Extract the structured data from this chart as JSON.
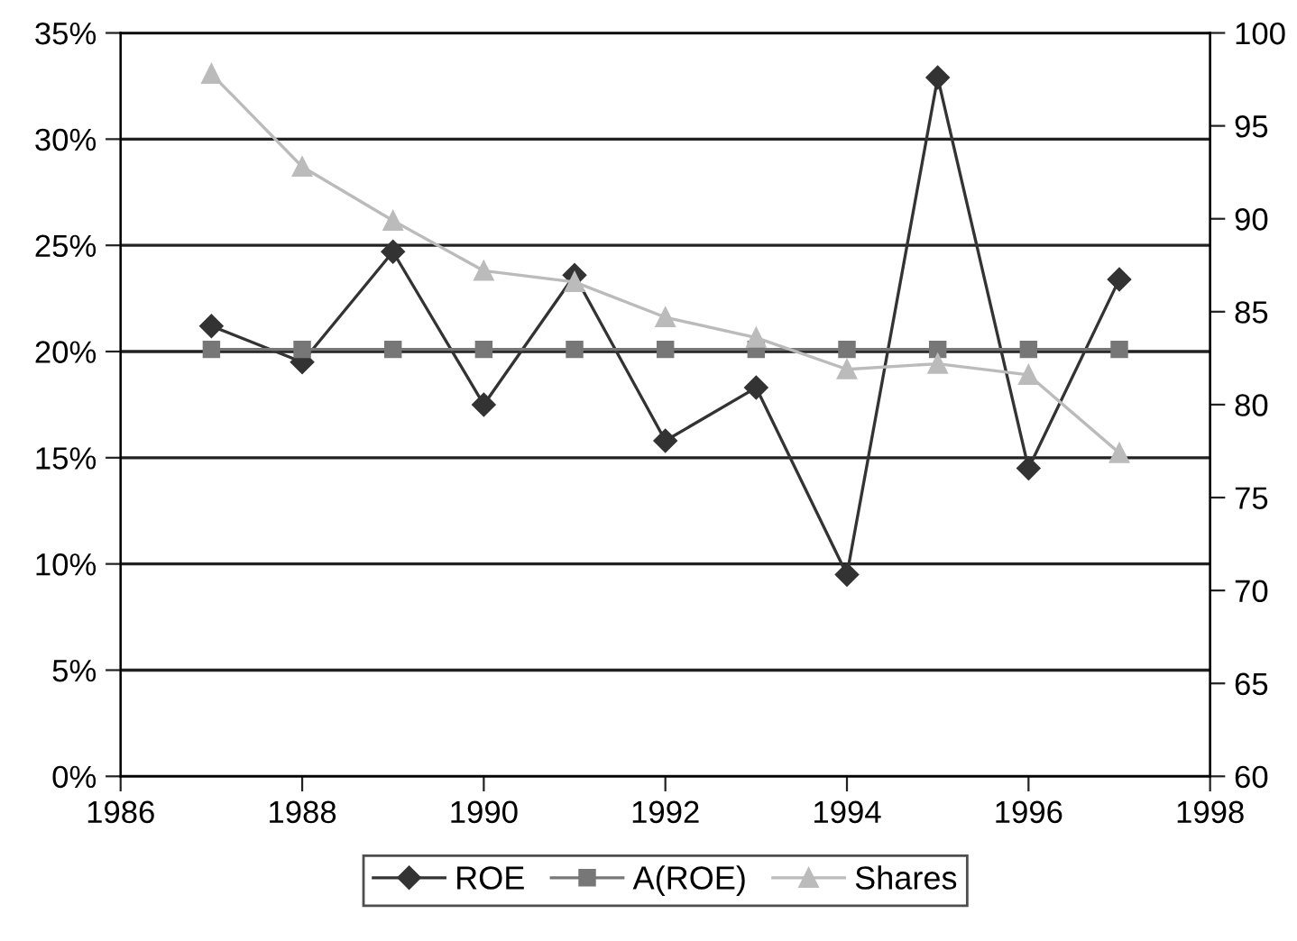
{
  "chart_data": {
    "type": "line",
    "x": [
      1987,
      1988,
      1989,
      1990,
      1991,
      1992,
      1993,
      1994,
      1995,
      1996,
      1997
    ],
    "series": [
      {
        "name": "ROE",
        "color": "#333333",
        "marker": "diamond",
        "values": [
          21.2,
          19.5,
          24.7,
          17.5,
          23.6,
          15.8,
          18.3,
          9.5,
          32.9,
          14.5,
          23.4
        ]
      },
      {
        "name": "A(ROE)",
        "color": "#777777",
        "marker": "square",
        "values": [
          20.1,
          20.1,
          20.1,
          20.1,
          20.1,
          20.1,
          20.1,
          20.1,
          20.1,
          20.1,
          20.1
        ]
      },
      {
        "name": "Shares",
        "color": "#bbbbbb",
        "marker": "triangle",
        "axis": "y2",
        "values": [
          97.8,
          92.8,
          89.9,
          87.2,
          86.6,
          84.7,
          83.6,
          81.9,
          82.2,
          81.6,
          77.4
        ]
      }
    ],
    "xlim": [
      1986,
      1998
    ],
    "xticks": [
      1986,
      1988,
      1990,
      1992,
      1994,
      1996,
      1998
    ],
    "ylim": [
      0,
      35
    ],
    "yticks": [
      {
        "value": 0,
        "label": "0%"
      },
      {
        "value": 5,
        "label": "5%"
      },
      {
        "value": 10,
        "label": "10%"
      },
      {
        "value": 15,
        "label": "15%"
      },
      {
        "value": 20,
        "label": "20%"
      },
      {
        "value": 25,
        "label": "25%"
      },
      {
        "value": 30,
        "label": "30%"
      },
      {
        "value": 35,
        "label": "35%"
      }
    ],
    "y2lim": [
      60,
      100
    ],
    "y2ticks": [
      60,
      65,
      70,
      75,
      80,
      85,
      90,
      95,
      100
    ],
    "grid": "y",
    "legend": "bottom"
  }
}
